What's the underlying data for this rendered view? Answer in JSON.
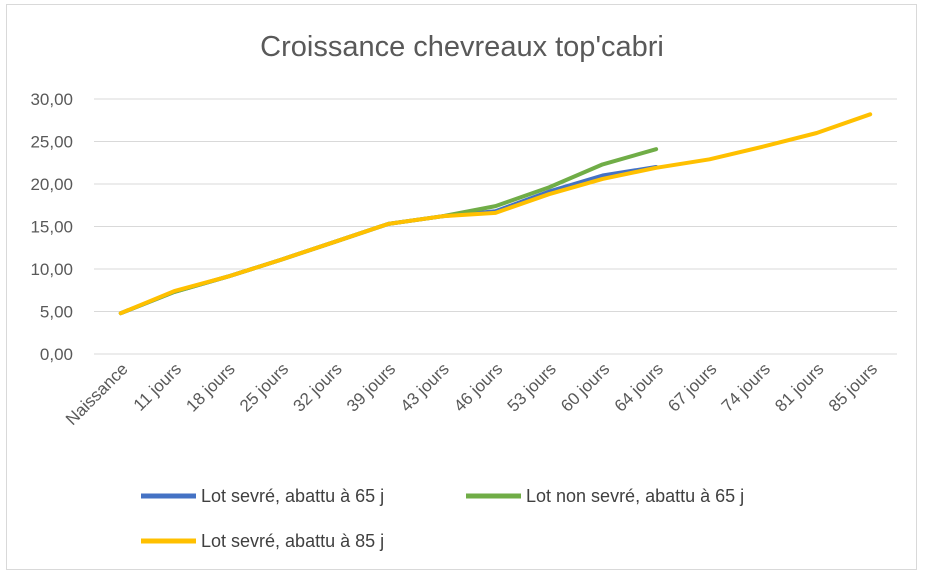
{
  "chart_data": {
    "type": "line",
    "title": "Croissance chevreaux top'cabri",
    "xlabel": "",
    "ylabel": "",
    "ylim": [
      0,
      30
    ],
    "yticks": [
      "0,00",
      "5,00",
      "10,00",
      "15,00",
      "20,00",
      "25,00",
      "30,00"
    ],
    "categories": [
      "Naissance",
      "11 jours",
      "18 jours",
      "25 jours",
      "32 jours",
      "39 jours",
      "43 jours",
      "46 jours",
      "53 jours",
      "60 jours",
      "64 jours",
      "67 jours",
      "74 jours",
      "81 jours",
      "85 jours"
    ],
    "grid": true,
    "legend_position": "bottom",
    "series": [
      {
        "name": "Lot sevré, abattu à 65 j",
        "color": "#4472c4",
        "values": [
          4.8,
          7.3,
          9.1,
          11.1,
          13.2,
          15.3,
          16.2,
          16.8,
          19.1,
          21.0,
          22.0,
          null,
          null,
          null,
          null
        ]
      },
      {
        "name": "Lot non sevré, abattu à 65 j",
        "color": "#70ad47",
        "values": [
          4.8,
          7.3,
          9.1,
          11.1,
          13.2,
          15.3,
          16.2,
          17.4,
          19.6,
          22.3,
          24.1,
          null,
          null,
          null,
          null
        ]
      },
      {
        "name": "Lot sevré, abattu à 85 j",
        "color": "#ffc000",
        "values": [
          4.8,
          7.4,
          9.1,
          11.1,
          13.2,
          15.3,
          16.2,
          16.6,
          18.8,
          20.6,
          21.9,
          22.9,
          24.4,
          26.0,
          28.2
        ]
      }
    ]
  }
}
